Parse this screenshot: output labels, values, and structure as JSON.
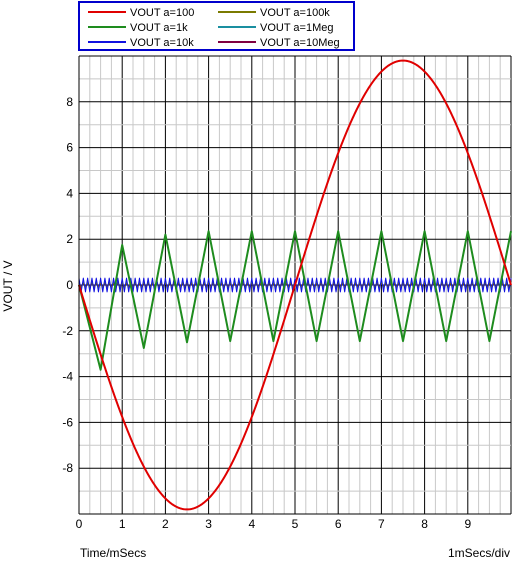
{
  "chart_data": {
    "type": "line",
    "xlabel": "Time/mSecs",
    "xscale_label": "1mSecs/div",
    "ylabel": "VOUT / V",
    "xlim": [
      0,
      10
    ],
    "ylim": [
      -10,
      10
    ],
    "xticks": [
      "0",
      "1",
      "2",
      "3",
      "4",
      "5",
      "6",
      "7",
      "8",
      "9"
    ],
    "yticks": [
      "-8",
      "-6",
      "-4",
      "-2",
      "0",
      "2",
      "4",
      "6",
      "8"
    ],
    "grid": true,
    "legend_position": "top",
    "series": [
      {
        "name": "VOUT a=100",
        "color": "#e00000",
        "shape": "sine",
        "period_ms": 10,
        "amplitude": 9.8,
        "phase_sign": -1
      },
      {
        "name": "VOUT a=100k",
        "color": "#7a7a00",
        "shape": "ripple",
        "period_ms": 0.1,
        "amplitude": 0.08
      },
      {
        "name": "VOUT a=1k",
        "color": "#1e8c1e",
        "shape": "triangle",
        "points": [
          [
            0,
            0
          ],
          [
            0.5,
            -3.7
          ],
          [
            1.0,
            1.75
          ],
          [
            1.5,
            -2.75
          ],
          [
            2.0,
            2.2
          ],
          [
            2.5,
            -2.5
          ],
          [
            3.0,
            2.35
          ],
          [
            3.5,
            -2.45
          ],
          [
            4.0,
            2.35
          ],
          [
            4.5,
            -2.45
          ],
          [
            5.0,
            2.35
          ],
          [
            5.5,
            -2.45
          ],
          [
            6.0,
            2.35
          ],
          [
            6.5,
            -2.45
          ],
          [
            7.0,
            2.35
          ],
          [
            7.5,
            -2.45
          ],
          [
            8.0,
            2.35
          ],
          [
            8.5,
            -2.45
          ],
          [
            9.0,
            2.35
          ],
          [
            9.5,
            -2.45
          ],
          [
            10.0,
            2.35
          ]
        ]
      },
      {
        "name": "VOUT a=1Meg",
        "color": "#1a8fa0",
        "shape": "ripple",
        "period_ms": 0.1,
        "amplitude": 0.12
      },
      {
        "name": "VOUT a=10k",
        "color": "#1010e0",
        "shape": "ripple",
        "period_ms": 0.1,
        "amplitude": 0.3
      },
      {
        "name": "VOUT a=10Meg",
        "color": "#800040",
        "shape": "ripple",
        "period_ms": 0.1,
        "amplitude": 0.06
      }
    ]
  }
}
